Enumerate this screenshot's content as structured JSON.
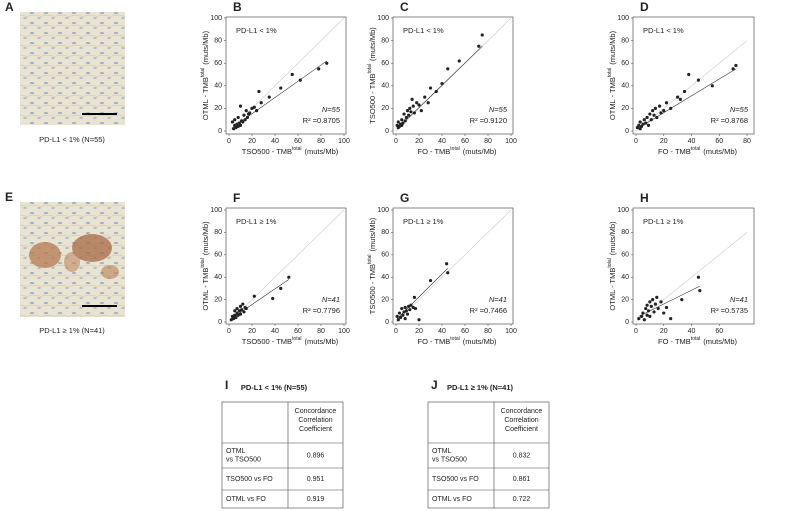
{
  "chart_data": [
    {
      "type": "scatter",
      "panel": "B",
      "annotation": "PD-L1 < 1%",
      "n_label": "N=55",
      "r2_label": "R² =0.8705",
      "xlabel": {
        "text": "TSO500 - TMB",
        "sup": "total",
        "unit": "(muts/Mb)"
      },
      "ylabel": {
        "text": "OTML - TMB",
        "sup": "total",
        "unit": "(muts/Mb)"
      },
      "xlim": [
        0,
        100
      ],
      "ylim": [
        0,
        100
      ],
      "xticks": [
        0,
        20,
        40,
        60,
        80,
        100
      ],
      "yticks": [
        0,
        20,
        40,
        60,
        80,
        100
      ],
      "color": "#222222",
      "x": [
        3,
        4,
        5,
        5,
        6,
        7,
        8,
        8,
        9,
        10,
        10,
        11,
        12,
        13,
        14,
        15,
        16,
        17,
        18,
        20,
        22,
        24,
        26,
        28,
        35,
        45,
        55,
        62,
        78,
        85
      ],
      "values": [
        8,
        2,
        5,
        10,
        3,
        6,
        4,
        12,
        7,
        5,
        22,
        9,
        8,
        14,
        10,
        18,
        12,
        15,
        16,
        20,
        21,
        18,
        35,
        25,
        30,
        38,
        50,
        45,
        55,
        60
      ],
      "fit": {
        "x": [
          3,
          85
        ],
        "values": [
          3,
          62
        ]
      }
    },
    {
      "type": "scatter",
      "panel": "C",
      "annotation": "PD-L1 < 1%",
      "n_label": "N=55",
      "r2_label": "R² =0.9120",
      "xlabel": {
        "text": "FO - TMB",
        "sup": "total",
        "unit": "(muts/Mb)"
      },
      "ylabel": {
        "text": "TSO500 - TMB",
        "sup": "total",
        "unit": "(muts/Mb)"
      },
      "xlim": [
        0,
        100
      ],
      "ylim": [
        0,
        100
      ],
      "xticks": [
        0,
        20,
        40,
        60,
        80,
        100
      ],
      "yticks": [
        0,
        20,
        40,
        60,
        80,
        100
      ],
      "color": "#222222",
      "x": [
        1,
        2,
        2,
        3,
        4,
        5,
        5,
        6,
        7,
        8,
        9,
        10,
        11,
        12,
        13,
        14,
        15,
        16,
        18,
        20,
        22,
        25,
        28,
        30,
        35,
        40,
        45,
        55,
        72,
        75
      ],
      "values": [
        5,
        3,
        8,
        4,
        6,
        5,
        10,
        7,
        15,
        9,
        12,
        18,
        14,
        20,
        17,
        28,
        22,
        16,
        25,
        23,
        18,
        30,
        25,
        38,
        35,
        42,
        55,
        62,
        75,
        85
      ],
      "fit": {
        "x": [
          1,
          75
        ],
        "values": [
          2,
          75
        ]
      }
    },
    {
      "type": "scatter",
      "panel": "D",
      "annotation": "PD-L1 < 1%",
      "n_label": "N=55",
      "r2_label": "R² =0.8768",
      "xlabel": {
        "text": "FO - TMB",
        "sup": "total",
        "unit": "(muts/Mb)"
      },
      "ylabel": {
        "text": "OTML - TMB",
        "sup": "total",
        "unit": "(muts/Mb)"
      },
      "xlim": [
        0,
        80
      ],
      "ylim": [
        0,
        100
      ],
      "xticks": [
        0,
        20,
        40,
        60,
        80
      ],
      "yticks": [
        0,
        20,
        40,
        60,
        80,
        100
      ],
      "color": "#222222",
      "x": [
        1,
        2,
        3,
        3,
        4,
        5,
        6,
        7,
        8,
        9,
        10,
        11,
        12,
        13,
        14,
        15,
        17,
        18,
        20,
        22,
        25,
        30,
        32,
        35,
        38,
        45,
        55,
        70,
        72
      ],
      "values": [
        3,
        5,
        2,
        8,
        4,
        6,
        10,
        7,
        12,
        5,
        15,
        10,
        18,
        14,
        20,
        12,
        22,
        16,
        18,
        25,
        20,
        30,
        28,
        35,
        50,
        45,
        40,
        55,
        58
      ],
      "fit": {
        "x": [
          1,
          72
        ],
        "values": [
          2,
          55
        ]
      }
    },
    {
      "type": "scatter",
      "panel": "F",
      "annotation": "PD-L1 ≥ 1%",
      "n_label": "N=41",
      "r2_label": "R² =0.7796",
      "xlabel": {
        "text": "TSO500 - TMB",
        "sup": "total",
        "unit": "(muts/Mb)"
      },
      "ylabel": {
        "text": "OTML - TMB",
        "sup": "total",
        "unit": "(muts/Mb)"
      },
      "xlim": [
        0,
        100
      ],
      "ylim": [
        0,
        100
      ],
      "xticks": [
        0,
        20,
        40,
        60,
        80,
        100
      ],
      "yticks": [
        0,
        20,
        40,
        60,
        80,
        100
      ],
      "color": "#222222",
      "x": [
        2,
        3,
        4,
        5,
        5,
        6,
        7,
        7,
        8,
        9,
        10,
        10,
        11,
        12,
        13,
        14,
        15,
        22,
        38,
        45,
        52
      ],
      "values": [
        2,
        5,
        3,
        6,
        10,
        4,
        8,
        12,
        6,
        10,
        14,
        7,
        11,
        16,
        9,
        13,
        12,
        23,
        21,
        30,
        40
      ],
      "fit": {
        "x": [
          2,
          52
        ],
        "values": [
          3,
          38
        ]
      }
    },
    {
      "type": "scatter",
      "panel": "G",
      "annotation": "PD-L1 ≥ 1%",
      "n_label": "N=41",
      "r2_label": "R² =0.7466",
      "xlabel": {
        "text": "FO - TMB",
        "sup": "total",
        "unit": "(muts/Mb)"
      },
      "ylabel": {
        "text": "TSO500 - TMB",
        "sup": "total",
        "unit": "(muts/Mb)"
      },
      "xlim": [
        0,
        100
      ],
      "ylim": [
        0,
        100
      ],
      "xticks": [
        0,
        20,
        40,
        60,
        80,
        100
      ],
      "yticks": [
        0,
        20,
        40,
        60,
        80,
        100
      ],
      "color": "#222222",
      "x": [
        1,
        2,
        3,
        4,
        5,
        6,
        7,
        8,
        8,
        9,
        10,
        11,
        12,
        13,
        15,
        16,
        17,
        20,
        30,
        44,
        45
      ],
      "values": [
        5,
        2,
        8,
        4,
        12,
        6,
        9,
        3,
        13,
        10,
        7,
        14,
        11,
        15,
        13,
        22,
        12,
        2,
        37,
        52,
        44
      ],
      "fit": {
        "x": [
          1,
          45
        ],
        "values": [
          3,
          48
        ]
      }
    },
    {
      "type": "scatter",
      "panel": "H",
      "annotation": "PD-L1 ≥ 1%",
      "n_label": "N=41",
      "r2_label": "R² =0.5735",
      "xlabel": {
        "text": "FO - TMB",
        "sup": "total",
        "unit": "(muts/Mb)"
      },
      "ylabel": {
        "text": "OTML - TMB",
        "sup": "total",
        "unit": "(muts/Mb)"
      },
      "xlim": [
        0,
        80
      ],
      "ylim": [
        0,
        100
      ],
      "xticks": [
        0,
        20,
        40,
        60
      ],
      "yticks": [
        0,
        20,
        40,
        60,
        80,
        100
      ],
      "color": "#222222",
      "x": [
        2,
        4,
        5,
        6,
        7,
        8,
        8,
        9,
        10,
        10,
        11,
        12,
        13,
        14,
        15,
        16,
        18,
        20,
        22,
        25,
        33,
        45,
        46
      ],
      "values": [
        3,
        5,
        8,
        2,
        12,
        6,
        15,
        10,
        18,
        5,
        14,
        20,
        9,
        16,
        22,
        12,
        18,
        8,
        13,
        3,
        20,
        40,
        28
      ],
      "fit": {
        "x": [
          2,
          46
        ],
        "values": [
          5,
          32
        ]
      }
    }
  ],
  "images": [
    {
      "panel": "A",
      "caption": "PD-L1 < 1% (N=55)"
    },
    {
      "panel": "E",
      "caption": "PD-L1 ≥ 1% (N=41)"
    }
  ],
  "tables": [
    {
      "panel": "I",
      "title": "PD-L1 < 1% (N=55)",
      "header": [
        "Concordance",
        "Correlation",
        "Coefficient"
      ],
      "rows": [
        {
          "label": [
            "OTML",
            "vs TSO500"
          ],
          "value": 0.896
        },
        {
          "label": [
            "TSO500 vs FO"
          ],
          "value": 0.951
        },
        {
          "label": [
            "OTML vs FO"
          ],
          "value": 0.919
        }
      ]
    },
    {
      "panel": "J",
      "title": "PD-L1 ≥ 1% (N=41)",
      "header": [
        "Concordance",
        "Correlation",
        "Coefficient"
      ],
      "rows": [
        {
          "label": [
            "OTML",
            "vs TSO500"
          ],
          "value": 0.832
        },
        {
          "label": [
            "TSO500 vs FO"
          ],
          "value": 0.861
        },
        {
          "label": [
            "OTML vs FO"
          ],
          "value": 0.722
        }
      ]
    }
  ]
}
